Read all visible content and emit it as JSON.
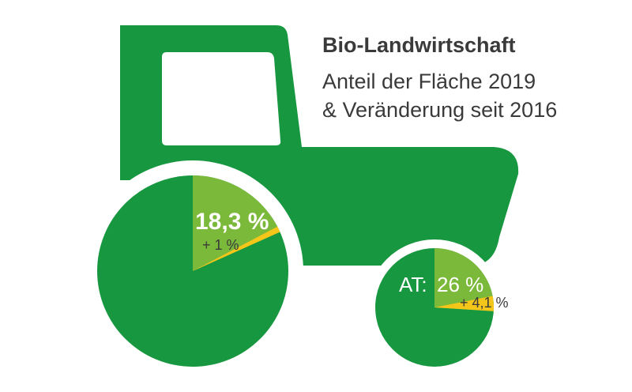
{
  "colors": {
    "tractor": "#17973f",
    "share": "#7bb93a",
    "change": "#f3c619",
    "text": "#3a3a3a",
    "white": "#ffffff"
  },
  "title": "Bio-Landwirtschaft",
  "subtitle_lines": [
    "Anteil der Fläche 2019",
    "& Veränderung seit 2016"
  ],
  "chart_data": [
    {
      "type": "pie",
      "name": "",
      "share_percent": 18.3,
      "change_percent": 1,
      "share_label": "18,3 %",
      "change_label": "+ 1 %"
    },
    {
      "type": "pie",
      "name": "AT:",
      "share_percent": 26,
      "change_percent": 4.1,
      "share_label": "26 %",
      "change_label": "+ 4,1 %"
    }
  ]
}
